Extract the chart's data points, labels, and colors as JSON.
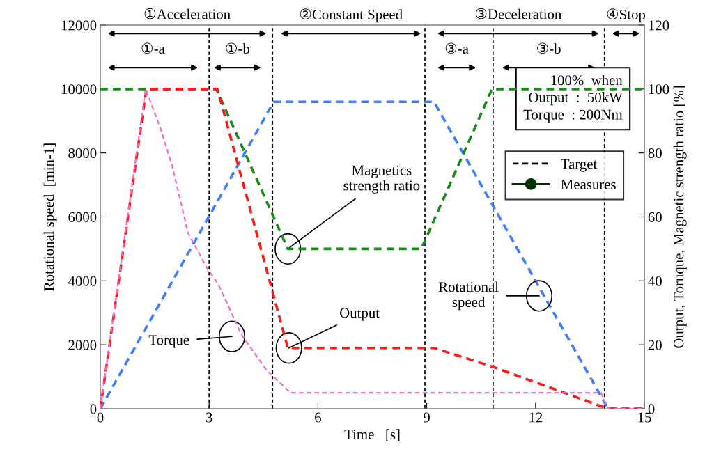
{
  "chart_data": {
    "type": "line",
    "xlabel": "Time   [s]",
    "ylabel": "Rotational speed  [min-1]",
    "y2label": "Output, Toruque, Magnetic strength ratio [%]",
    "xlim": [
      0,
      15
    ],
    "xticks": [
      0,
      3,
      6,
      9,
      12,
      15
    ],
    "ylim": [
      0,
      12000
    ],
    "yticks": [
      0,
      2000,
      4000,
      6000,
      8000,
      10000,
      12000
    ],
    "y2lim": [
      0,
      120
    ],
    "y2ticks": [
      0,
      20,
      40,
      60,
      80,
      100,
      120
    ],
    "grid": false,
    "legend": "top right",
    "line_style": "dashed",
    "marker": "none",
    "series": [
      {
        "x": [
          0,
          4.78,
          9.2,
          14.0,
          15
        ],
        "values": [
          0,
          9600,
          9600,
          0,
          0
        ],
        "color": "#3f7fff"
      },
      {
        "x": [
          0,
          3.2,
          5.17,
          8.85,
          10.8,
          15
        ],
        "values": [
          100,
          100,
          50,
          50,
          100,
          100
        ],
        "color": "#1a8a1a",
        "axis": "y2"
      },
      {
        "x": [
          0,
          1.27,
          3.23,
          5.17,
          9.2,
          10.85,
          14.0,
          15
        ],
        "values": [
          0,
          100,
          100,
          19,
          19,
          13,
          0,
          0
        ],
        "color": "#ff1a1a",
        "axis": "y2"
      },
      {
        "x": [
          0,
          1.25,
          1.65,
          1.98,
          2.42,
          2.94,
          3.25,
          3.9,
          4.59,
          5.24,
          13.8,
          14.0,
          15
        ],
        "values": [
          0,
          100,
          88,
          76,
          55,
          44,
          39,
          23,
          12,
          5,
          5,
          0,
          0
        ],
        "color": "#ff66cc",
        "axis": "y2"
      },
      {
        "name": "Target",
        "color": "#000000",
        "line_style": "dashed"
      },
      {
        "name": "Measures",
        "color": "#003300",
        "line_style": "solid",
        "marker": "circle"
      }
    ],
    "ref_lines": [
      {
        "axis": "x",
        "value": 3,
        "color": "#000000",
        "line_style": "dashed"
      },
      {
        "axis": "x",
        "value": 4.75,
        "color": "#000000",
        "line_style": "dashed"
      },
      {
        "axis": "x",
        "value": 8.95,
        "color": "#000000",
        "line_style": "dashed"
      },
      {
        "axis": "x",
        "value": 10.83,
        "color": "#000000",
        "line_style": "dashed"
      },
      {
        "axis": "x",
        "value": 13.9,
        "color": "#000000",
        "line_style": "dashed"
      }
    ],
    "annotations": [
      {
        "text": "Magnetics\nstrength ratio",
        "x": 5.17,
        "y": 5000
      },
      {
        "text": "Output",
        "x": 5.2,
        "y": 1900
      },
      {
        "text": "Torque",
        "x": 3.63,
        "y": 2260
      },
      {
        "text": "Rotational\nspeed",
        "x": 12.1,
        "y": 3530
      },
      "100%  when\nOutput  :  50kW\nTorque  : 200Nm",
      "①Acceleration",
      "②Constant Speed",
      "③Deceleration",
      "④Stop",
      "①-a",
      "①-b",
      "③-a",
      "③-b"
    ]
  }
}
